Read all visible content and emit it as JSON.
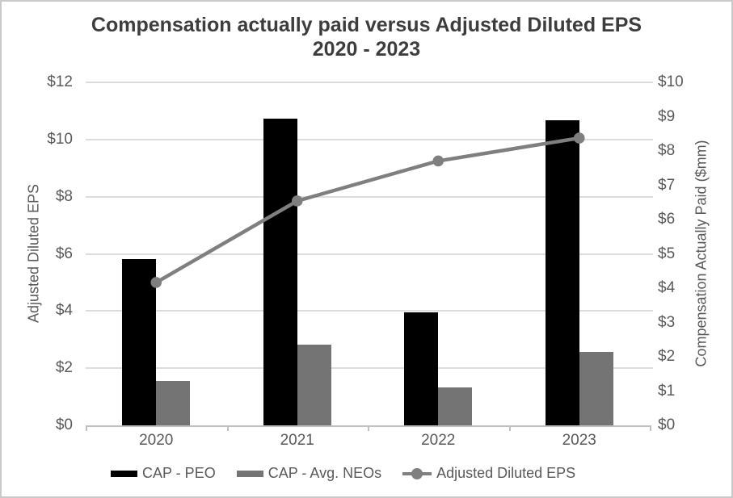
{
  "title": {
    "line1": "Compensation actually paid versus Adjusted Diluted EPS",
    "line2": "2020 - 2023",
    "full": "Compensation actually paid versus Adjusted Diluted EPS 2020 - 2023"
  },
  "chart_data": {
    "type": "combo-bar-line",
    "categories": [
      "2020",
      "2021",
      "2022",
      "2023"
    ],
    "series": [
      {
        "name": "CAP - PEO",
        "type": "bar",
        "axis": "right",
        "color": "#000000",
        "values": [
          4.85,
          8.95,
          3.3,
          8.9
        ]
      },
      {
        "name": "CAP - Avg. NEOs",
        "type": "bar",
        "axis": "right",
        "color": "#747474",
        "values": [
          1.3,
          2.35,
          1.1,
          2.15
        ]
      },
      {
        "name": "Adjusted Diluted EPS",
        "type": "line",
        "axis": "left",
        "color": "#7f7f7f",
        "values": [
          5.0,
          7.85,
          9.25,
          10.05
        ]
      }
    ],
    "left_axis": {
      "title": "Adjusted Diluted EPS",
      "min": 0,
      "max": 12,
      "step": 2,
      "ticks": [
        "$0",
        "$2",
        "$4",
        "$6",
        "$8",
        "$10",
        "$12"
      ]
    },
    "right_axis": {
      "title": "Compensation Actually Paid ($mm)",
      "min": 0,
      "max": 10,
      "step": 1,
      "ticks": [
        "$0",
        "$1",
        "$2",
        "$3",
        "$4",
        "$5",
        "$6",
        "$7",
        "$8",
        "$9",
        "$10"
      ]
    },
    "grid": true,
    "legend_position": "bottom"
  },
  "colors": {
    "gridline": "#dcdcdc",
    "axis_line": "#bfbfbf",
    "axis_text": "#595959",
    "title_text": "#3d3d3d",
    "bar_peo": "#000000",
    "bar_neo": "#747474",
    "eps_line": "#7f7f7f"
  }
}
